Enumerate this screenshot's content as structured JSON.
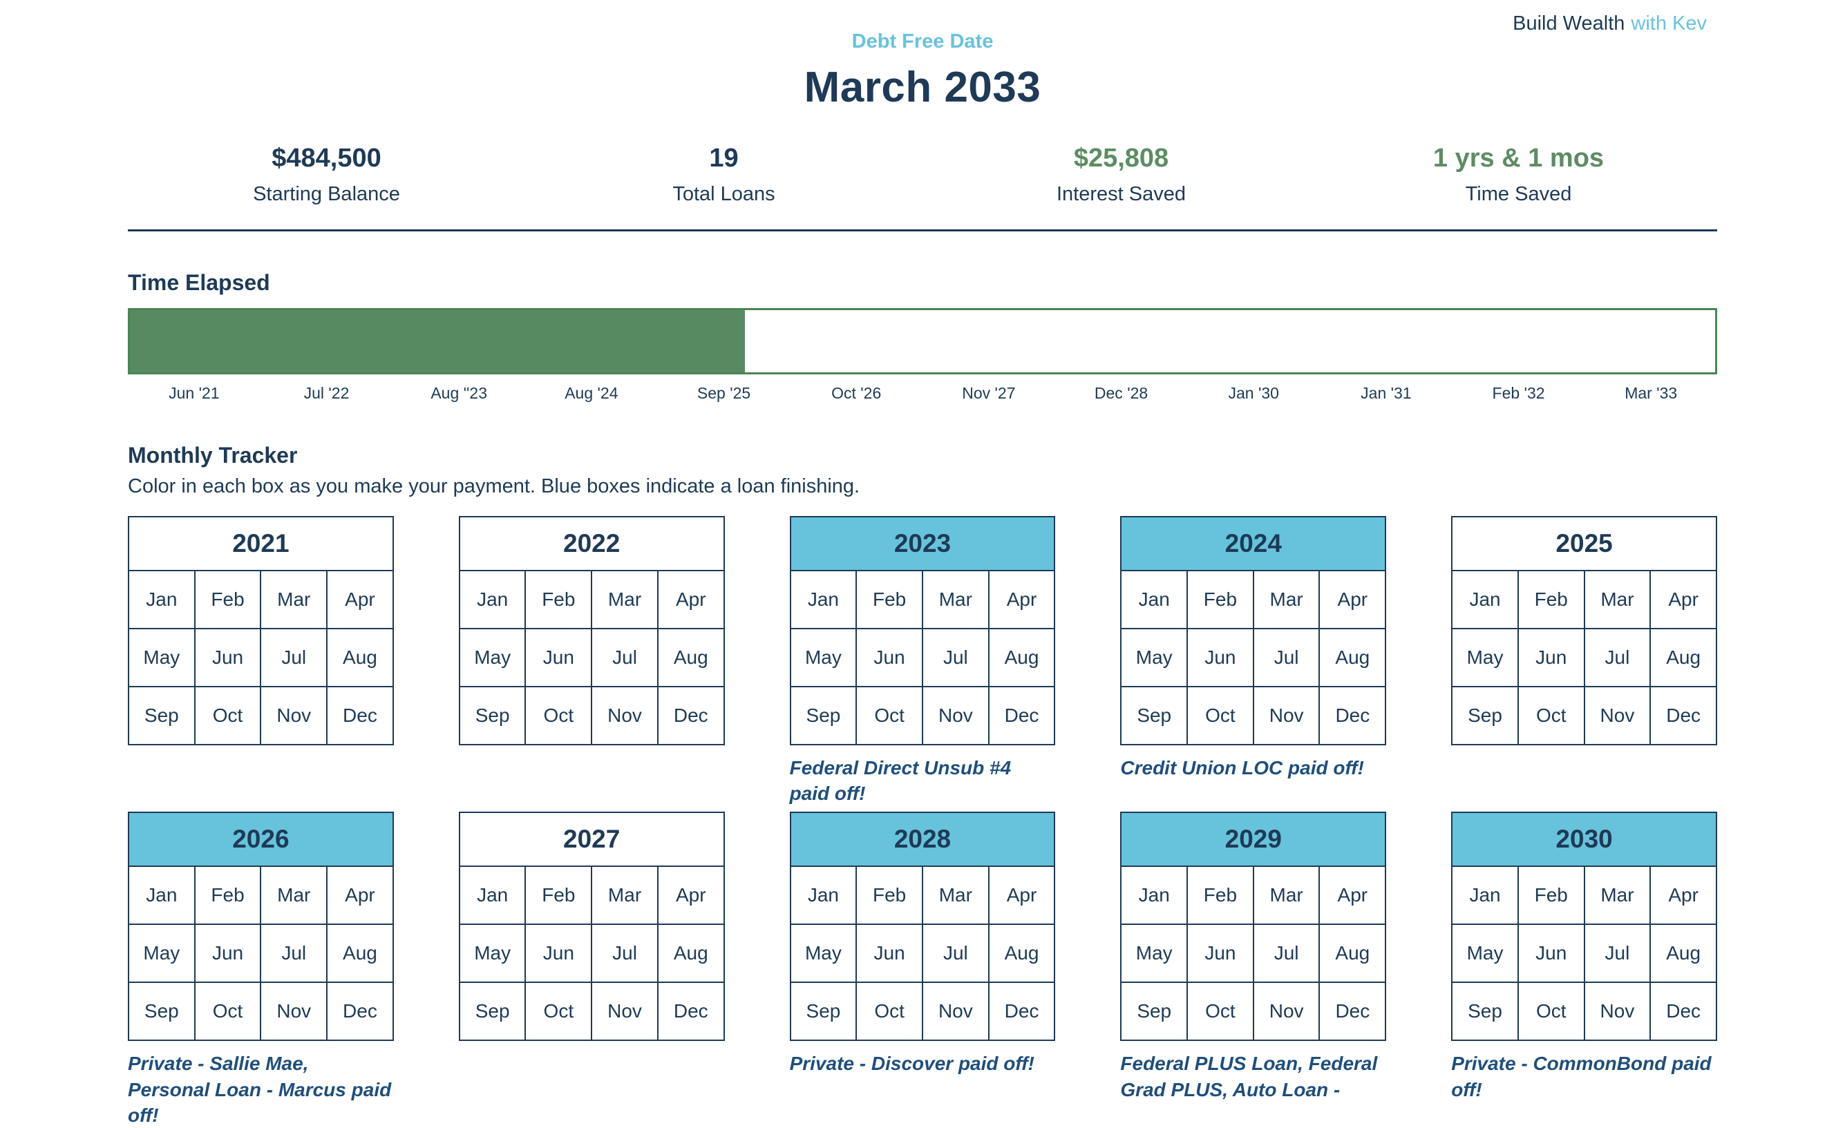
{
  "header": {
    "brand_dark": "Build Wealth",
    "brand_accent": "with Kev",
    "debt_free_label": "Debt Free Date",
    "debt_free_date": "March 2033"
  },
  "stats": [
    {
      "value": "$484,500",
      "label": "Starting Balance",
      "emphasis": "dark"
    },
    {
      "value": "19",
      "label": "Total Loans",
      "emphasis": "dark"
    },
    {
      "value": "$25,808",
      "label": "Interest Saved",
      "emphasis": "green"
    },
    {
      "value": "1 yrs & 1 mos",
      "label": "Time Saved",
      "emphasis": "green"
    }
  ],
  "time_elapsed": {
    "title": "Time Elapsed",
    "progress_percent": 38.8,
    "axis_labels": [
      "Jun '21",
      "Jul '22",
      "Aug ''23",
      "Aug '24",
      "Sep '25",
      "Oct '26",
      "Nov '27",
      "Dec '28",
      "Jan '30",
      "Jan '31",
      "Feb '32",
      "Mar '33"
    ]
  },
  "monthly_tracker": {
    "title": "Monthly Tracker",
    "subtitle": "Color in each box as you make your payment. Blue boxes indicate a loan finishing.",
    "months": [
      "Jan",
      "Feb",
      "Mar",
      "Apr",
      "May",
      "Jun",
      "Jul",
      "Aug",
      "Sep",
      "Oct",
      "Nov",
      "Dec"
    ],
    "years": [
      {
        "year": "2021",
        "highlight": false,
        "caption": ""
      },
      {
        "year": "2022",
        "highlight": false,
        "caption": ""
      },
      {
        "year": "2023",
        "highlight": true,
        "caption": "Federal Direct Unsub #4 paid off!"
      },
      {
        "year": "2024",
        "highlight": true,
        "caption": "Credit Union LOC paid off!"
      },
      {
        "year": "2025",
        "highlight": false,
        "caption": ""
      },
      {
        "year": "2026",
        "highlight": true,
        "caption": "Private - Sallie Mae, Personal Loan - Marcus paid off!"
      },
      {
        "year": "2027",
        "highlight": false,
        "caption": ""
      },
      {
        "year": "2028",
        "highlight": true,
        "caption": "Private - Discover paid off!"
      },
      {
        "year": "2029",
        "highlight": true,
        "caption": "Federal PLUS Loan, Federal Grad PLUS, Auto Loan -"
      },
      {
        "year": "2030",
        "highlight": true,
        "caption": "Private - CommonBond paid off!"
      }
    ]
  },
  "colors": {
    "navy": "#1e3a56",
    "accent": "#67c3dc",
    "green_text": "#5c8c63",
    "progress_fill": "#588a62",
    "progress_border": "#4a8455",
    "caption_blue": "#1f4e7c"
  }
}
